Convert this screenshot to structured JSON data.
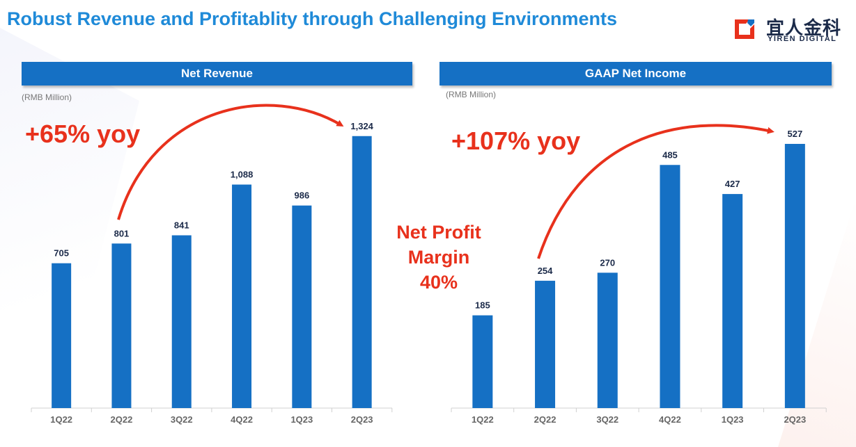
{
  "header": {
    "title": "Robust Revenue and Profitablity through Challenging Environments"
  },
  "logo": {
    "cn_text": "宜人金科",
    "en_text": "YIREN DIGITAL",
    "mark_icon": "yiren-logo-mark-icon"
  },
  "left_panel": {
    "header": "Net Revenue",
    "unit": "(RMB Million)",
    "growth_label": "+65% yoy"
  },
  "right_panel": {
    "header": "GAAP Net Income",
    "unit": "(RMB Million)",
    "growth_label": "+107% yoy",
    "margin_note": [
      "Net Profit",
      "Margin",
      "40%"
    ]
  },
  "colors": {
    "bar": "#1570c4",
    "title": "#1f8ad8",
    "accent": "#e8311c",
    "value_label": "#1b2a49",
    "tick": "#666666"
  },
  "chart_data": [
    {
      "type": "bar",
      "title": "Net Revenue",
      "ylabel": "(RMB Million)",
      "categories": [
        "1Q22",
        "2Q22",
        "3Q22",
        "4Q22",
        "1Q23",
        "2Q23"
      ],
      "values": [
        705,
        801,
        841,
        1088,
        986,
        1324
      ],
      "value_labels": [
        "705",
        "801",
        "841",
        "1,088",
        "986",
        "1,324"
      ],
      "annotation": "+65% yoy"
    },
    {
      "type": "bar",
      "title": "GAAP Net Income",
      "ylabel": "(RMB Million)",
      "categories": [
        "1Q22",
        "2Q22",
        "3Q22",
        "4Q22",
        "1Q23",
        "2Q23"
      ],
      "values": [
        185,
        254,
        270,
        485,
        427,
        527
      ],
      "value_labels": [
        "185",
        "254",
        "270",
        "485",
        "427",
        "527"
      ],
      "annotation": "+107% yoy"
    }
  ]
}
